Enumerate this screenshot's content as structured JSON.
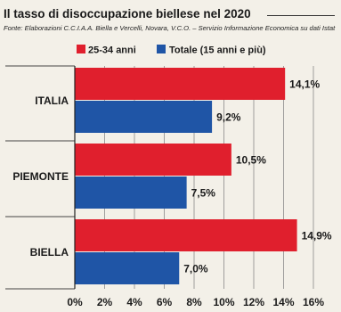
{
  "header": {
    "title": "Il tasso di disoccupazione biellese nel 2020",
    "source": "Fonte: Elaborazioni C.C.I.A.A. Biella e Vercelli, Novara, V.C.O. – Servizio Informazione Economica su dati Istat"
  },
  "colors": {
    "series1": "#e01f2d",
    "series2": "#1f55a6"
  },
  "chart_data": {
    "type": "bar",
    "orientation": "horizontal",
    "categories": [
      "ITALIA",
      "PIEMONTE",
      "BIELLA"
    ],
    "series": [
      {
        "name": "25-34 anni",
        "values": [
          14.1,
          10.5,
          14.9
        ],
        "labels": [
          "14,1%",
          "10,5%",
          "14,9%"
        ]
      },
      {
        "name": "Totale (15 anni e più)",
        "values": [
          9.2,
          7.5,
          7.0
        ],
        "labels": [
          "9,2%",
          "7,5%",
          "7,0%"
        ]
      }
    ],
    "xlim": [
      0,
      16
    ],
    "xticks": [
      0,
      2,
      4,
      6,
      8,
      10,
      12,
      14,
      16
    ],
    "xtick_labels": [
      "0%",
      "2%",
      "4%",
      "6%",
      "8%",
      "10%",
      "12%",
      "14%",
      "16%"
    ],
    "grid": true,
    "legend_position": "top-left"
  }
}
